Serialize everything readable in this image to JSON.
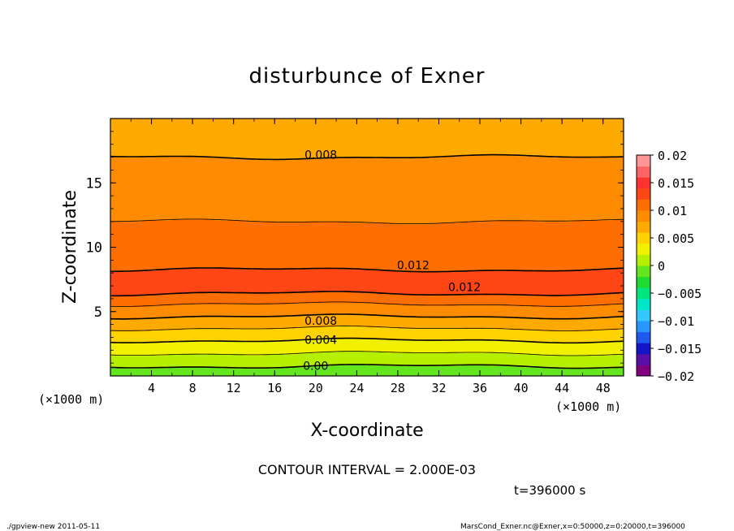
{
  "chart_data": {
    "type": "heatmap",
    "title": "disturbunce of Exner",
    "xlabel": "X-coordinate",
    "ylabel": "Z-coordinate",
    "x_unit": "(×1000 m)",
    "y_unit": "(×1000 m)",
    "xlim": [
      0,
      50
    ],
    "ylim": [
      0,
      20
    ],
    "x_ticks": [
      "4",
      "8",
      "12",
      "16",
      "20",
      "24",
      "28",
      "32",
      "36",
      "40",
      "44",
      "48"
    ],
    "y_ticks": [
      "5",
      "10",
      "15"
    ],
    "profile_z": [
      0,
      0.5,
      1,
      1.5,
      2,
      2.5,
      3,
      3.5,
      4,
      4.5,
      5,
      5.5,
      6,
      6.5,
      7,
      7.5,
      8,
      8.5,
      9,
      9.5,
      10,
      10.5,
      11,
      11.5,
      12,
      12.5,
      13,
      13.5,
      14,
      15,
      16,
      17,
      18,
      19,
      20
    ],
    "profile_value": [
      -0.0015,
      -0.0005,
      0.0005,
      0.0015,
      0.0025,
      0.0035,
      0.0045,
      0.0055,
      0.0068,
      0.0078,
      0.0087,
      0.0098,
      0.0112,
      0.0122,
      0.0126,
      0.0126,
      0.0122,
      0.0118,
      0.0115,
      0.0112,
      0.0111,
      0.0108,
      0.0105,
      0.0102,
      0.01,
      0.0098,
      0.0096,
      0.0094,
      0.0092,
      0.0088,
      0.0084,
      0.008,
      0.0076,
      0.0072,
      0.0068
    ],
    "contour_labels": [
      {
        "text": "0.008",
        "x": 20.5,
        "z": 17.2
      },
      {
        "text": "0.012",
        "x": 29.5,
        "z": 8.6
      },
      {
        "text": "0.012",
        "x": 34.5,
        "z": 6.9
      },
      {
        "text": "0.008",
        "x": 20.5,
        "z": 4.3
      },
      {
        "text": "0.004",
        "x": 20.5,
        "z": 2.8
      },
      {
        "text": "0.00",
        "x": 20,
        "z": 0.8
      }
    ],
    "colorbar": {
      "ticks": [
        "0.02",
        "0.015",
        "0.01",
        "0.005",
        "0",
        "−0.005",
        "−0.01",
        "−0.015",
        "−0.02"
      ],
      "range": [
        -0.02,
        0.02
      ],
      "colors": [
        "#800080",
        "#5a0fa8",
        "#1414c8",
        "#1e5af0",
        "#2896ff",
        "#32c8ff",
        "#00e6c8",
        "#00e67d",
        "#1edc32",
        "#64e61e",
        "#b4f000",
        "#f0f000",
        "#ffd200",
        "#ffaa00",
        "#ff8c00",
        "#ff6e00",
        "#ff4614",
        "#ff3232",
        "#ff6464",
        "#ff9696"
      ]
    },
    "contour_interval": "2.000E-03"
  },
  "footer": {
    "contour_interval_text": "CONTOUR INTERVAL = 2.000E-03",
    "time_text": "t=396000 s",
    "program_text": "./gpview-new   2011-05-11",
    "source_text": "MarsCond_Exner.nc@Exner,x=0:50000,z=0:20000,t=396000"
  }
}
